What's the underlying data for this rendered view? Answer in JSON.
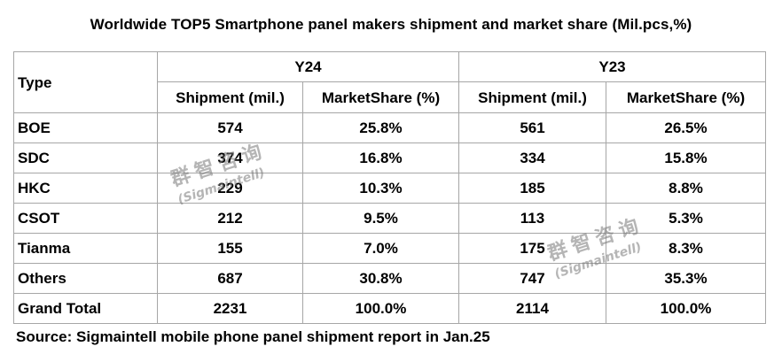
{
  "title": "Worldwide TOP5 Smartphone panel makers shipment and market share  (Mil.pcs,%)",
  "table": {
    "type_header": "Type",
    "groups": [
      "Y24",
      "Y23"
    ],
    "subheaders": [
      "Shipment (mil.)",
      "MarketShare (%)",
      "Shipment (mil.)",
      "MarketShare (%)"
    ],
    "rows": [
      {
        "name": "BOE",
        "y24_shipment": "574",
        "y24_share": "25.8%",
        "y23_shipment": "561",
        "y23_share": "26.5%"
      },
      {
        "name": "SDC",
        "y24_shipment": "374",
        "y24_share": "16.8%",
        "y23_shipment": "334",
        "y23_share": "15.8%"
      },
      {
        "name": "HKC",
        "y24_shipment": "229",
        "y24_share": "10.3%",
        "y23_shipment": "185",
        "y23_share": "8.8%"
      },
      {
        "name": "CSOT",
        "y24_shipment": "212",
        "y24_share": "9.5%",
        "y23_shipment": "113",
        "y23_share": "5.3%"
      },
      {
        "name": "Tianma",
        "y24_shipment": "155",
        "y24_share": "7.0%",
        "y23_shipment": "175",
        "y23_share": "8.3%"
      },
      {
        "name": "Others",
        "y24_shipment": "687",
        "y24_share": "30.8%",
        "y23_shipment": "747",
        "y23_share": "35.3%"
      },
      {
        "name": "Grand Total",
        "y24_shipment": "2231",
        "y24_share": "100.0%",
        "y23_shipment": "2114",
        "y23_share": "100.0%"
      }
    ]
  },
  "source": "Source: Sigmaintell mobile phone panel shipment report in Jan.25",
  "watermark": {
    "chinese": "群智咨询",
    "english": "(Sigmaintell)"
  }
}
